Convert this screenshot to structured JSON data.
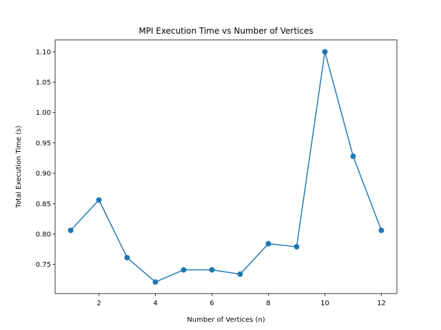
{
  "chart_data": {
    "type": "line",
    "title": "MPI Execution Time vs Number of Vertices",
    "xlabel": "Number of Vertices (n)",
    "ylabel": "Total Execution Time (s)",
    "x": [
      1,
      2,
      3,
      4,
      5,
      6,
      7,
      8,
      9,
      10,
      11,
      12
    ],
    "series": [
      {
        "values": [
          0.806,
          0.856,
          0.761,
          0.721,
          0.741,
          0.741,
          0.734,
          0.784,
          0.779,
          1.1,
          0.928,
          0.806
        ],
        "color": "#1f77b4",
        "marker": "circle"
      }
    ],
    "xlim": [
      0.45,
      12.55
    ],
    "ylim": [
      0.702,
      1.1195
    ],
    "xticks": [
      "2",
      "4",
      "6",
      "8",
      "10",
      "12"
    ],
    "yticks": [
      "0.75",
      "0.80",
      "0.85",
      "0.90",
      "0.95",
      "1.00",
      "1.05",
      "1.10"
    ],
    "grid": false,
    "legend": "none"
  }
}
